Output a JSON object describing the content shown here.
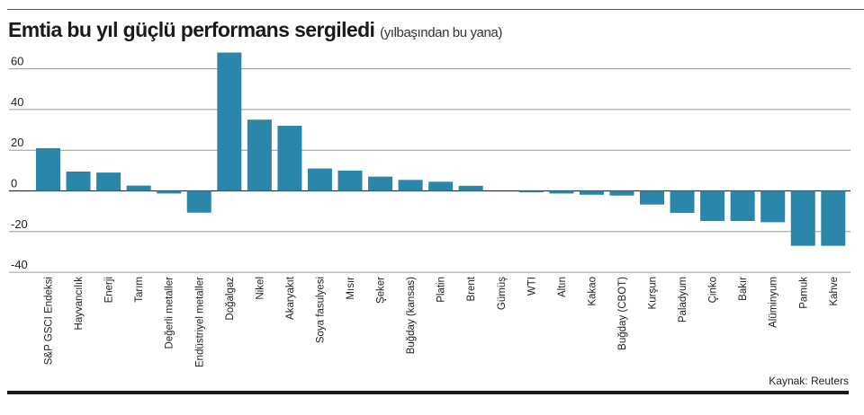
{
  "chart_data": {
    "type": "bar",
    "title": "Emtia bu yıl güçlü performans sergiledi",
    "subtitle": "(yılbaşından bu yana)",
    "xlabel": "",
    "ylabel": "",
    "ylim": [
      -40,
      70
    ],
    "yticks": [
      60,
      40,
      20,
      0,
      -20,
      -40
    ],
    "grid": true,
    "color": "#2A87AA",
    "categories": [
      "S&P GSCI Endeksi",
      "Hayvancılık",
      "Enerji",
      "Tarım",
      "Değerli metaller",
      "Endüstriyel metaller",
      "Doğalgaz",
      "Nikel",
      "Akaryakıt",
      "Soya fasulyesi",
      "Mısır",
      "Şeker",
      "Buğday (kansas)",
      "Platin",
      "Brent",
      "Gümüş",
      "WTI",
      "Altın",
      "Kakao",
      "Buğday (CBOT)",
      "Kurşun",
      "Paladyum",
      "Çinko",
      "Bakır",
      "Alüminyum",
      "Pamuk",
      "Kahve"
    ],
    "values": [
      21,
      9.5,
      9,
      2.6,
      -1.3,
      -10.7,
      68,
      35,
      32,
      11,
      10,
      7,
      5.4,
      4.5,
      2.5,
      0,
      -0.7,
      -1.3,
      -1.9,
      -2.3,
      -6.7,
      -10.8,
      -14.8,
      -14.8,
      -15.4,
      -27,
      -27
    ],
    "source": "Kaynak: Reuters"
  }
}
